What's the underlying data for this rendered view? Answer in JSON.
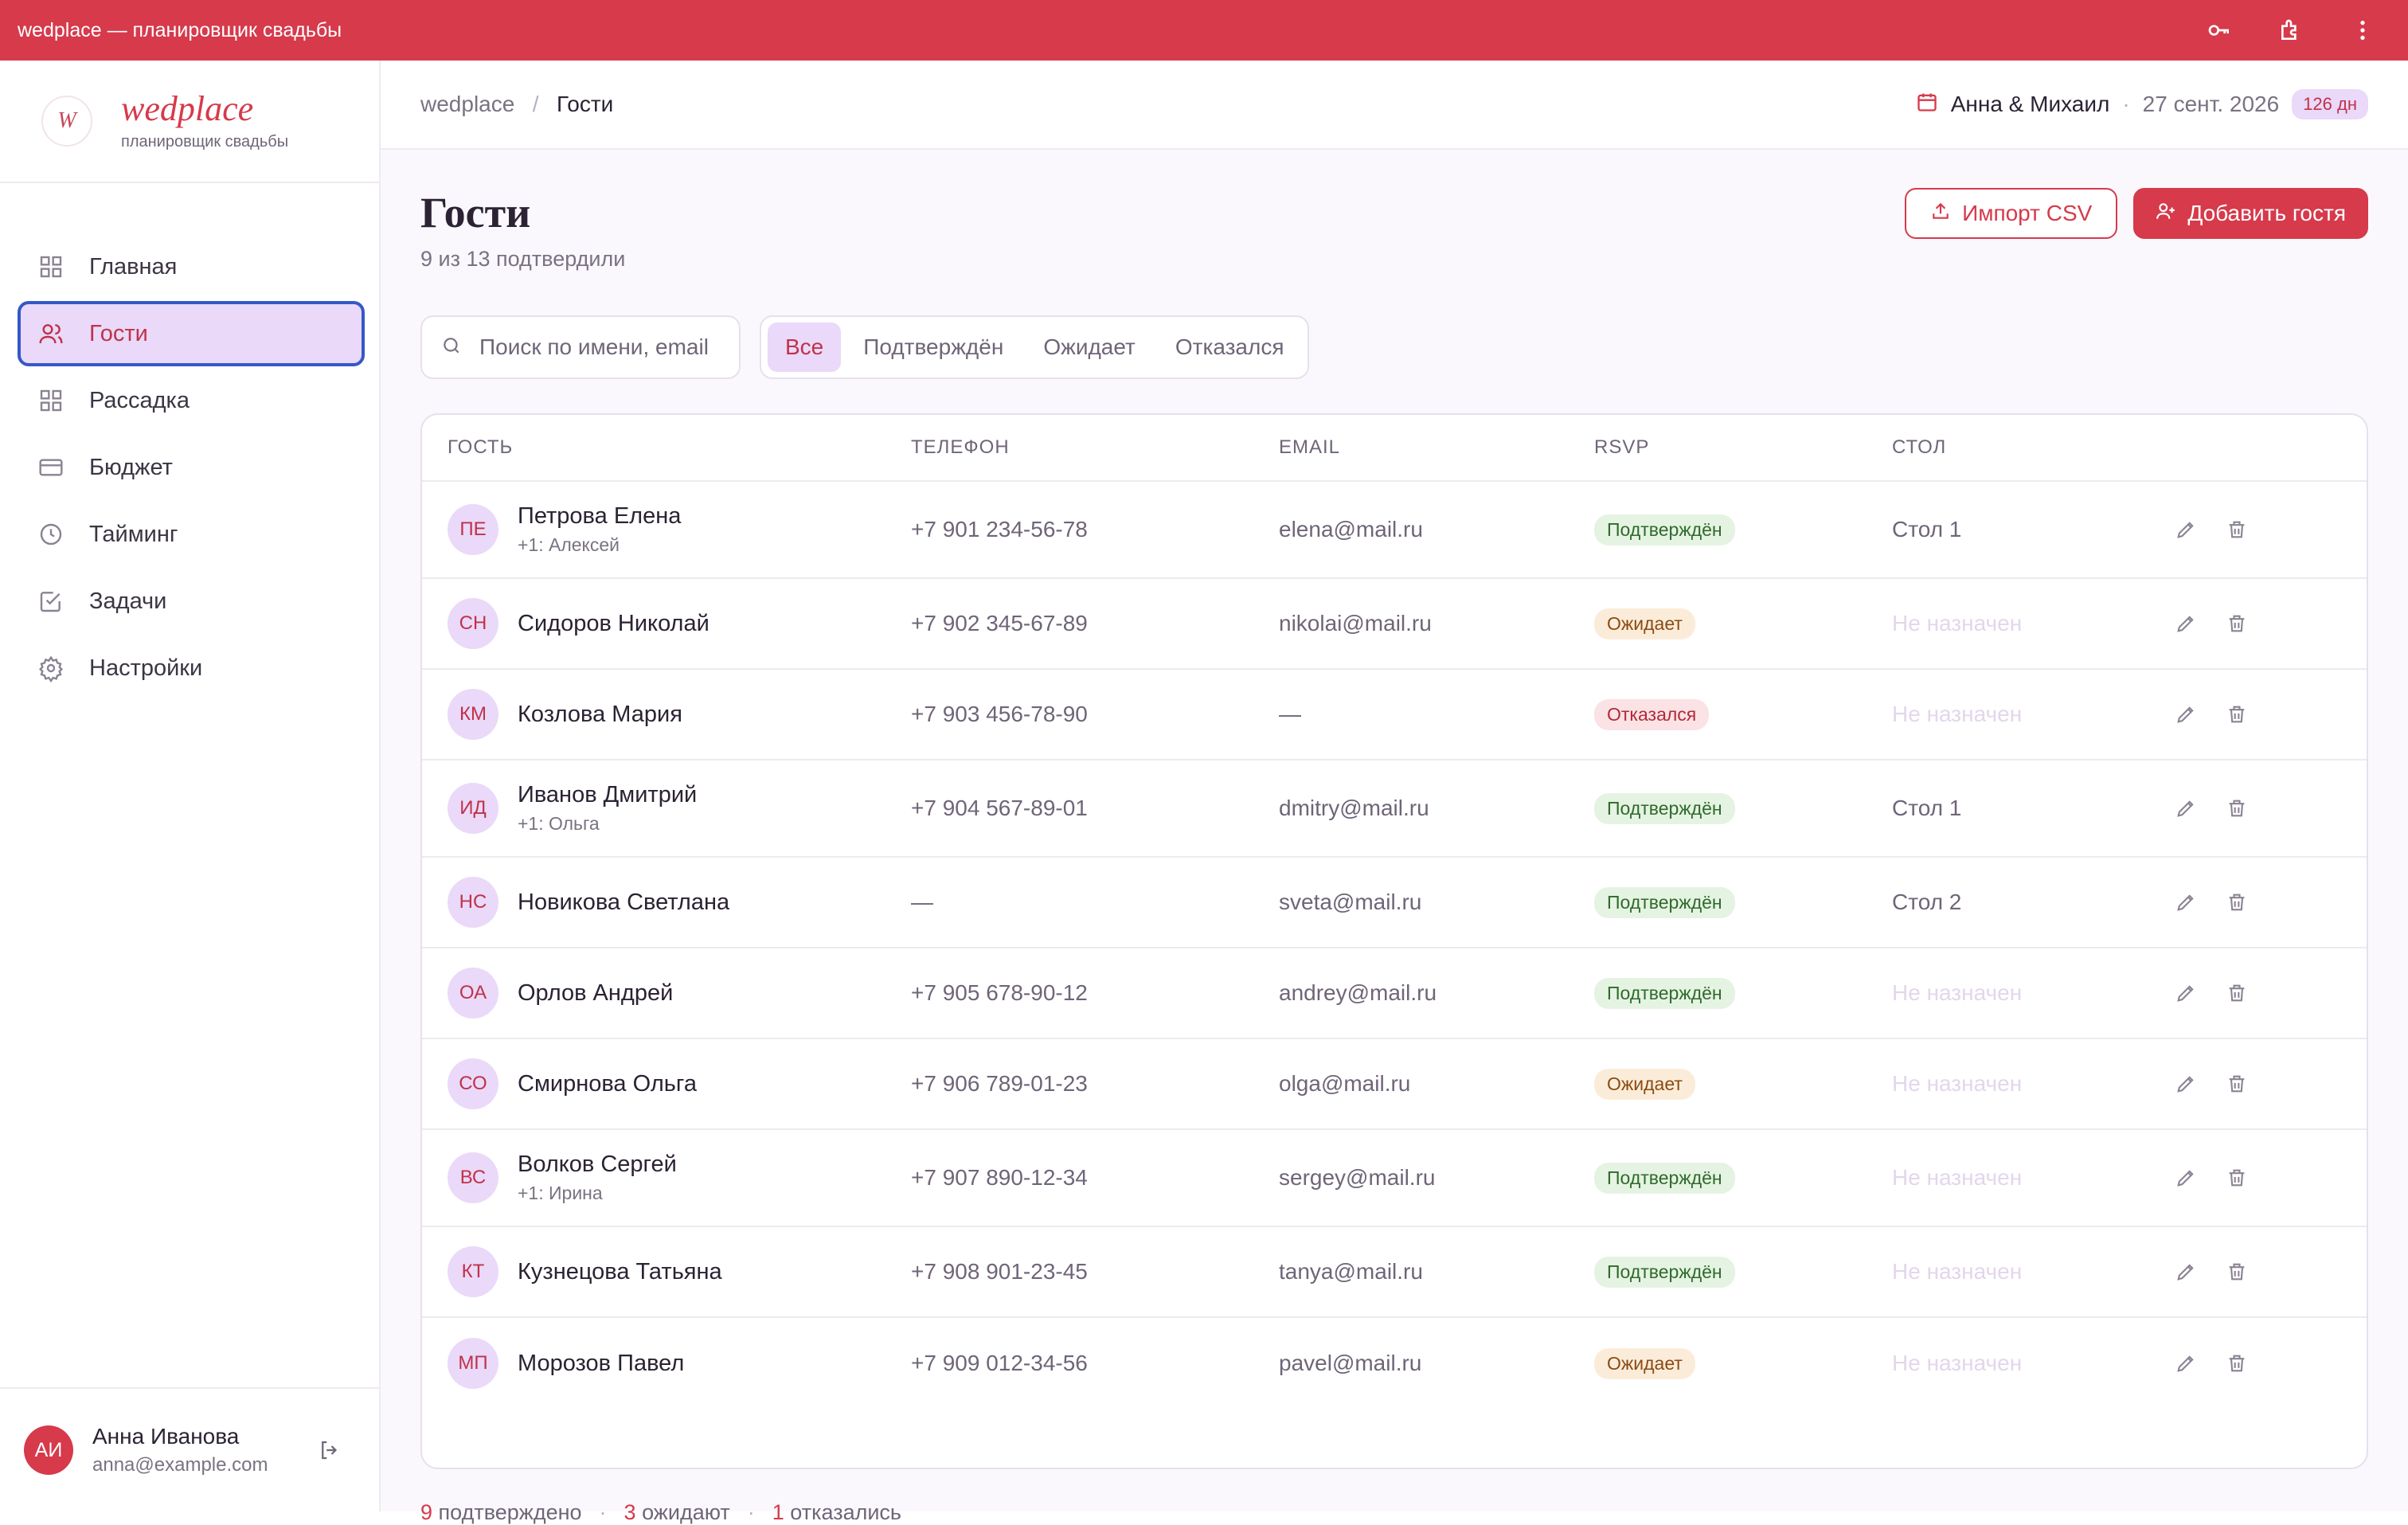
{
  "window": {
    "title": "wedplace — планировщик свадьбы"
  },
  "brand": {
    "logo_text": "W",
    "name": "wedplace",
    "subtitle": "планировщик свадьбы"
  },
  "sidebar": {
    "items": [
      {
        "label": "Главная",
        "icon": "grid-icon",
        "active": false
      },
      {
        "label": "Гости",
        "icon": "users-icon",
        "active": true
      },
      {
        "label": "Рассадка",
        "icon": "layout-icon",
        "active": false
      },
      {
        "label": "Бюджет",
        "icon": "card-icon",
        "active": false
      },
      {
        "label": "Тайминг",
        "icon": "clock-icon",
        "active": false
      },
      {
        "label": "Задачи",
        "icon": "checkbox-icon",
        "active": false
      },
      {
        "label": "Настройки",
        "icon": "gear-icon",
        "active": false
      }
    ],
    "user": {
      "initials": "АИ",
      "name": "Анна Иванова",
      "email": "anna@example.com"
    }
  },
  "header": {
    "breadcrumb_root": "wedplace",
    "breadcrumb_sep": "/",
    "breadcrumb_current": "Гости",
    "couple": "Анна & Михаил",
    "date_sep": "·",
    "wedding_date": "27 сент. 2026",
    "days_left": "126 дн"
  },
  "page": {
    "title": "Гости",
    "subtitle": "9 из 13 подтвердили",
    "import_label": "Импорт CSV",
    "add_label": "Добавить гостя"
  },
  "search": {
    "placeholder": "Поиск по имени, email",
    "value": ""
  },
  "filters": {
    "all": "Все",
    "confirmed": "Подтверждён",
    "pending": "Ожидает",
    "declined": "Отказался",
    "active": "all"
  },
  "table": {
    "headers": {
      "guest": "ГОСТЬ",
      "phone": "ТЕЛЕФОН",
      "email": "EMAIL",
      "rsvp": "RSVP",
      "table": "СТОЛ"
    },
    "rows": [
      {
        "initials": "ПЕ",
        "name": "Петрова Елена",
        "plus": "+1: Алексей",
        "phone": "+7 901 234-56-78",
        "email": "elena@mail.ru",
        "rsvp": "Подтверждён",
        "rsvp_kind": "ok",
        "table": "Стол 1"
      },
      {
        "initials": "СН",
        "name": "Сидоров Николай",
        "plus": "",
        "phone": "+7 902 345-67-89",
        "email": "nikolai@mail.ru",
        "rsvp": "Ожидает",
        "rsvp_kind": "wait",
        "table": "Не назначен"
      },
      {
        "initials": "КМ",
        "name": "Козлова Мария",
        "plus": "",
        "phone": "+7 903 456-78-90",
        "email": "—",
        "rsvp": "Отказался",
        "rsvp_kind": "no",
        "table": "Не назначен"
      },
      {
        "initials": "ИД",
        "name": "Иванов Дмитрий",
        "plus": "+1: Ольга",
        "phone": "+7 904 567-89-01",
        "email": "dmitry@mail.ru",
        "rsvp": "Подтверждён",
        "rsvp_kind": "ok",
        "table": "Стол 1"
      },
      {
        "initials": "НС",
        "name": "Новикова Светлана",
        "plus": "",
        "phone": "—",
        "email": "sveta@mail.ru",
        "rsvp": "Подтверждён",
        "rsvp_kind": "ok",
        "table": "Стол 2"
      },
      {
        "initials": "ОА",
        "name": "Орлов Андрей",
        "plus": "",
        "phone": "+7 905 678-90-12",
        "email": "andrey@mail.ru",
        "rsvp": "Подтверждён",
        "rsvp_kind": "ok",
        "table": "Не назначен"
      },
      {
        "initials": "СО",
        "name": "Смирнова Ольга",
        "plus": "",
        "phone": "+7 906 789-01-23",
        "email": "olga@mail.ru",
        "rsvp": "Ожидает",
        "rsvp_kind": "wait",
        "table": "Не назначен"
      },
      {
        "initials": "ВС",
        "name": "Волков Сергей",
        "plus": "+1: Ирина",
        "phone": "+7 907 890-12-34",
        "email": "sergey@mail.ru",
        "rsvp": "Подтверждён",
        "rsvp_kind": "ok",
        "table": "Не назначен"
      },
      {
        "initials": "КТ",
        "name": "Кузнецова Татьяна",
        "plus": "",
        "phone": "+7 908 901-23-45",
        "email": "tanya@mail.ru",
        "rsvp": "Подтверждён",
        "rsvp_kind": "ok",
        "table": "Не назначен"
      },
      {
        "initials": "МП",
        "name": "Морозов Павел",
        "plus": "",
        "phone": "+7 909 012-34-56",
        "email": "pavel@mail.ru",
        "rsvp": "Ожидает",
        "rsvp_kind": "wait",
        "table": "Не назначен"
      }
    ]
  },
  "summary": {
    "confirmed_num": "9",
    "confirmed_text": "подтверждено",
    "pending_num": "3",
    "pending_text": "ожидают",
    "declined_num": "1",
    "declined_text": "отказались",
    "sep": "·"
  },
  "colors": {
    "accent": "#d63a4b",
    "accent_soft": "#ead9f8",
    "focus": "#3558c8"
  }
}
